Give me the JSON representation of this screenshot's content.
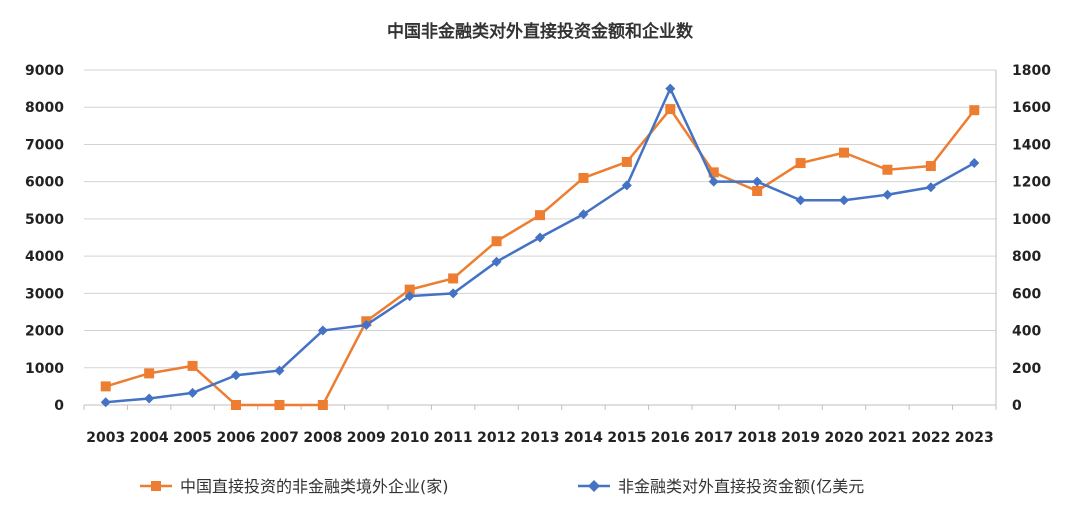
{
  "chart_data": {
    "type": "line",
    "title": "中国非金融类对外直接投资金额和企业数",
    "categories": [
      "2003",
      "2004",
      "2005",
      "2006",
      "2007",
      "2008",
      "2009",
      "2010",
      "2011",
      "2012",
      "2013",
      "2014",
      "2015",
      "2016",
      "2017",
      "2018",
      "2019",
      "2020",
      "2021",
      "2022",
      "2023"
    ],
    "left_axis": {
      "ylim": [
        0,
        9000
      ],
      "ticks": [
        "0",
        "1000",
        "2000",
        "3000",
        "4000",
        "5000",
        "6000",
        "7000",
        "8000",
        "9000"
      ]
    },
    "right_axis": {
      "ylim": [
        0,
        1800
      ],
      "ticks": [
        "0",
        "200",
        "400",
        "600",
        "800",
        "1000",
        "1200",
        "1400",
        "1600",
        "1800"
      ]
    },
    "grid": true,
    "legend_position": "bottom",
    "series": [
      {
        "name": "中国直接投资的非金融类境外企业(家)",
        "axis": "left",
        "marker": "square",
        "color": "#ED7D31",
        "values": [
          500,
          850,
          1050,
          0,
          0,
          0,
          2250,
          3100,
          3400,
          4400,
          5100,
          6100,
          6530,
          7950,
          6250,
          5750,
          6500,
          6780,
          6320,
          6420,
          7920
        ]
      },
      {
        "name": "非金融类对外直接投资金额(亿美元",
        "axis": "right",
        "marker": "diamond",
        "color": "#4472C4",
        "values": [
          15,
          35,
          65,
          160,
          185,
          400,
          430,
          585,
          600,
          770,
          900,
          1025,
          1180,
          1700,
          1200,
          1200,
          1100,
          1100,
          1130,
          1170,
          1300
        ]
      }
    ]
  }
}
